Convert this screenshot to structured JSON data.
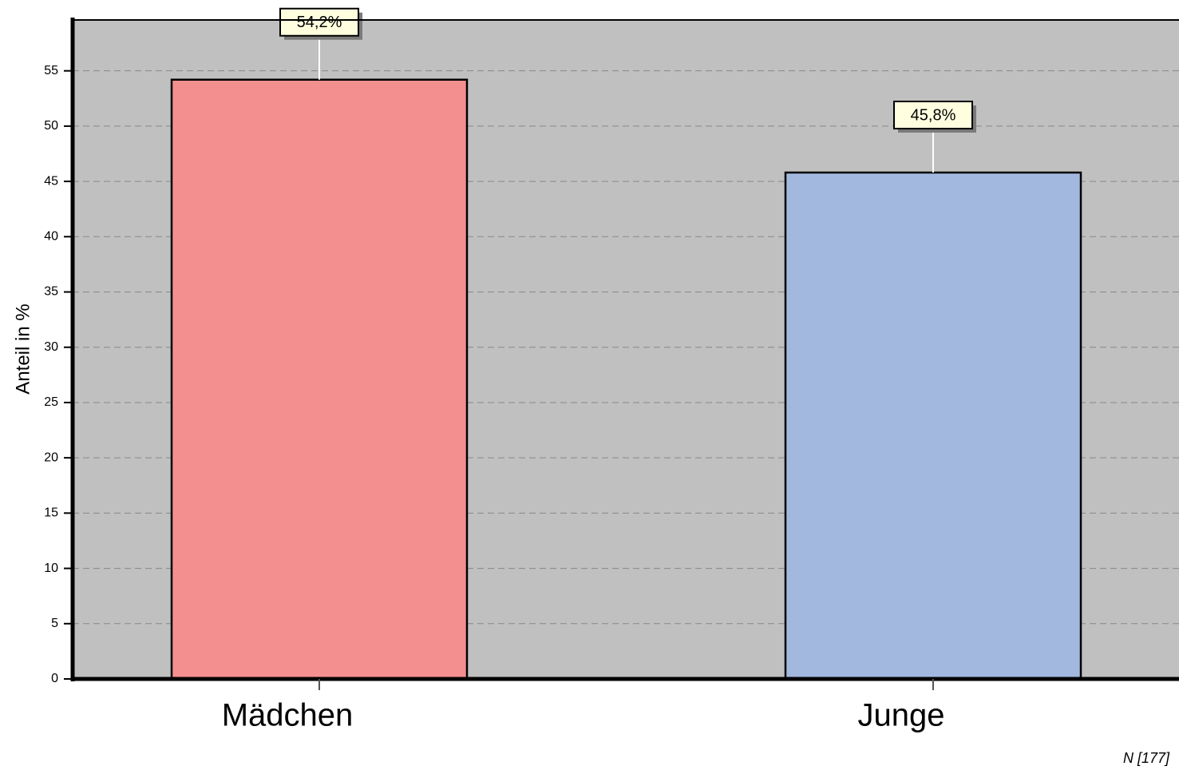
{
  "chart_data": {
    "type": "bar",
    "categories": [
      "Mädchen",
      "Junge"
    ],
    "values": [
      54.2,
      45.8
    ],
    "value_labels": [
      "54,2%",
      "45,8%"
    ],
    "colors": [
      "#f48f8f",
      "#a2b8df"
    ],
    "ylabel": "Anteil in %",
    "annotation": "N [177]",
    "ylim": [
      0,
      59.6
    ],
    "yticks": [
      0,
      5,
      10,
      15,
      20,
      25,
      30,
      35,
      40,
      45,
      50,
      55
    ],
    "grid": true
  }
}
